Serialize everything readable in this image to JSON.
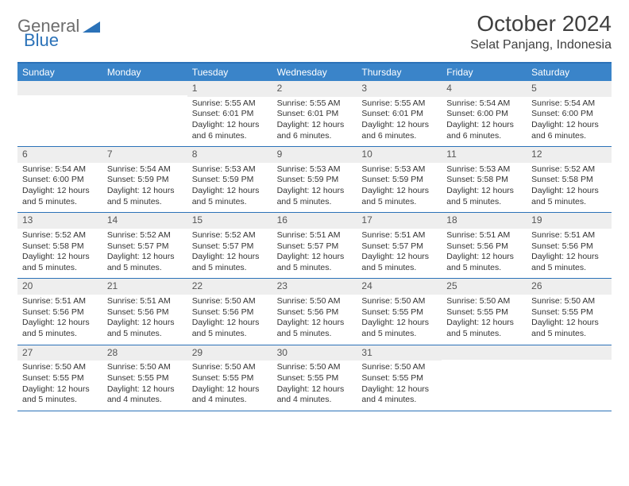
{
  "logo": {
    "part1": "General",
    "part2": "Blue"
  },
  "title": "October 2024",
  "location": "Selat Panjang, Indonesia",
  "colors": {
    "header_bg": "#3a84c9",
    "border": "#2b72b8",
    "daynum_bg": "#eeeeee",
    "text": "#333333",
    "logo_gray": "#6d6d6d",
    "logo_blue": "#2b72b8"
  },
  "day_names": [
    "Sunday",
    "Monday",
    "Tuesday",
    "Wednesday",
    "Thursday",
    "Friday",
    "Saturday"
  ],
  "weeks": [
    [
      {
        "n": "",
        "sr": "",
        "ss": "",
        "dl": ""
      },
      {
        "n": "",
        "sr": "",
        "ss": "",
        "dl": ""
      },
      {
        "n": "1",
        "sr": "Sunrise: 5:55 AM",
        "ss": "Sunset: 6:01 PM",
        "dl": "Daylight: 12 hours and 6 minutes."
      },
      {
        "n": "2",
        "sr": "Sunrise: 5:55 AM",
        "ss": "Sunset: 6:01 PM",
        "dl": "Daylight: 12 hours and 6 minutes."
      },
      {
        "n": "3",
        "sr": "Sunrise: 5:55 AM",
        "ss": "Sunset: 6:01 PM",
        "dl": "Daylight: 12 hours and 6 minutes."
      },
      {
        "n": "4",
        "sr": "Sunrise: 5:54 AM",
        "ss": "Sunset: 6:00 PM",
        "dl": "Daylight: 12 hours and 6 minutes."
      },
      {
        "n": "5",
        "sr": "Sunrise: 5:54 AM",
        "ss": "Sunset: 6:00 PM",
        "dl": "Daylight: 12 hours and 6 minutes."
      }
    ],
    [
      {
        "n": "6",
        "sr": "Sunrise: 5:54 AM",
        "ss": "Sunset: 6:00 PM",
        "dl": "Daylight: 12 hours and 5 minutes."
      },
      {
        "n": "7",
        "sr": "Sunrise: 5:54 AM",
        "ss": "Sunset: 5:59 PM",
        "dl": "Daylight: 12 hours and 5 minutes."
      },
      {
        "n": "8",
        "sr": "Sunrise: 5:53 AM",
        "ss": "Sunset: 5:59 PM",
        "dl": "Daylight: 12 hours and 5 minutes."
      },
      {
        "n": "9",
        "sr": "Sunrise: 5:53 AM",
        "ss": "Sunset: 5:59 PM",
        "dl": "Daylight: 12 hours and 5 minutes."
      },
      {
        "n": "10",
        "sr": "Sunrise: 5:53 AM",
        "ss": "Sunset: 5:59 PM",
        "dl": "Daylight: 12 hours and 5 minutes."
      },
      {
        "n": "11",
        "sr": "Sunrise: 5:53 AM",
        "ss": "Sunset: 5:58 PM",
        "dl": "Daylight: 12 hours and 5 minutes."
      },
      {
        "n": "12",
        "sr": "Sunrise: 5:52 AM",
        "ss": "Sunset: 5:58 PM",
        "dl": "Daylight: 12 hours and 5 minutes."
      }
    ],
    [
      {
        "n": "13",
        "sr": "Sunrise: 5:52 AM",
        "ss": "Sunset: 5:58 PM",
        "dl": "Daylight: 12 hours and 5 minutes."
      },
      {
        "n": "14",
        "sr": "Sunrise: 5:52 AM",
        "ss": "Sunset: 5:57 PM",
        "dl": "Daylight: 12 hours and 5 minutes."
      },
      {
        "n": "15",
        "sr": "Sunrise: 5:52 AM",
        "ss": "Sunset: 5:57 PM",
        "dl": "Daylight: 12 hours and 5 minutes."
      },
      {
        "n": "16",
        "sr": "Sunrise: 5:51 AM",
        "ss": "Sunset: 5:57 PM",
        "dl": "Daylight: 12 hours and 5 minutes."
      },
      {
        "n": "17",
        "sr": "Sunrise: 5:51 AM",
        "ss": "Sunset: 5:57 PM",
        "dl": "Daylight: 12 hours and 5 minutes."
      },
      {
        "n": "18",
        "sr": "Sunrise: 5:51 AM",
        "ss": "Sunset: 5:56 PM",
        "dl": "Daylight: 12 hours and 5 minutes."
      },
      {
        "n": "19",
        "sr": "Sunrise: 5:51 AM",
        "ss": "Sunset: 5:56 PM",
        "dl": "Daylight: 12 hours and 5 minutes."
      }
    ],
    [
      {
        "n": "20",
        "sr": "Sunrise: 5:51 AM",
        "ss": "Sunset: 5:56 PM",
        "dl": "Daylight: 12 hours and 5 minutes."
      },
      {
        "n": "21",
        "sr": "Sunrise: 5:51 AM",
        "ss": "Sunset: 5:56 PM",
        "dl": "Daylight: 12 hours and 5 minutes."
      },
      {
        "n": "22",
        "sr": "Sunrise: 5:50 AM",
        "ss": "Sunset: 5:56 PM",
        "dl": "Daylight: 12 hours and 5 minutes."
      },
      {
        "n": "23",
        "sr": "Sunrise: 5:50 AM",
        "ss": "Sunset: 5:56 PM",
        "dl": "Daylight: 12 hours and 5 minutes."
      },
      {
        "n": "24",
        "sr": "Sunrise: 5:50 AM",
        "ss": "Sunset: 5:55 PM",
        "dl": "Daylight: 12 hours and 5 minutes."
      },
      {
        "n": "25",
        "sr": "Sunrise: 5:50 AM",
        "ss": "Sunset: 5:55 PM",
        "dl": "Daylight: 12 hours and 5 minutes."
      },
      {
        "n": "26",
        "sr": "Sunrise: 5:50 AM",
        "ss": "Sunset: 5:55 PM",
        "dl": "Daylight: 12 hours and 5 minutes."
      }
    ],
    [
      {
        "n": "27",
        "sr": "Sunrise: 5:50 AM",
        "ss": "Sunset: 5:55 PM",
        "dl": "Daylight: 12 hours and 5 minutes."
      },
      {
        "n": "28",
        "sr": "Sunrise: 5:50 AM",
        "ss": "Sunset: 5:55 PM",
        "dl": "Daylight: 12 hours and 4 minutes."
      },
      {
        "n": "29",
        "sr": "Sunrise: 5:50 AM",
        "ss": "Sunset: 5:55 PM",
        "dl": "Daylight: 12 hours and 4 minutes."
      },
      {
        "n": "30",
        "sr": "Sunrise: 5:50 AM",
        "ss": "Sunset: 5:55 PM",
        "dl": "Daylight: 12 hours and 4 minutes."
      },
      {
        "n": "31",
        "sr": "Sunrise: 5:50 AM",
        "ss": "Sunset: 5:55 PM",
        "dl": "Daylight: 12 hours and 4 minutes."
      },
      {
        "n": "",
        "sr": "",
        "ss": "",
        "dl": ""
      },
      {
        "n": "",
        "sr": "",
        "ss": "",
        "dl": ""
      }
    ]
  ]
}
